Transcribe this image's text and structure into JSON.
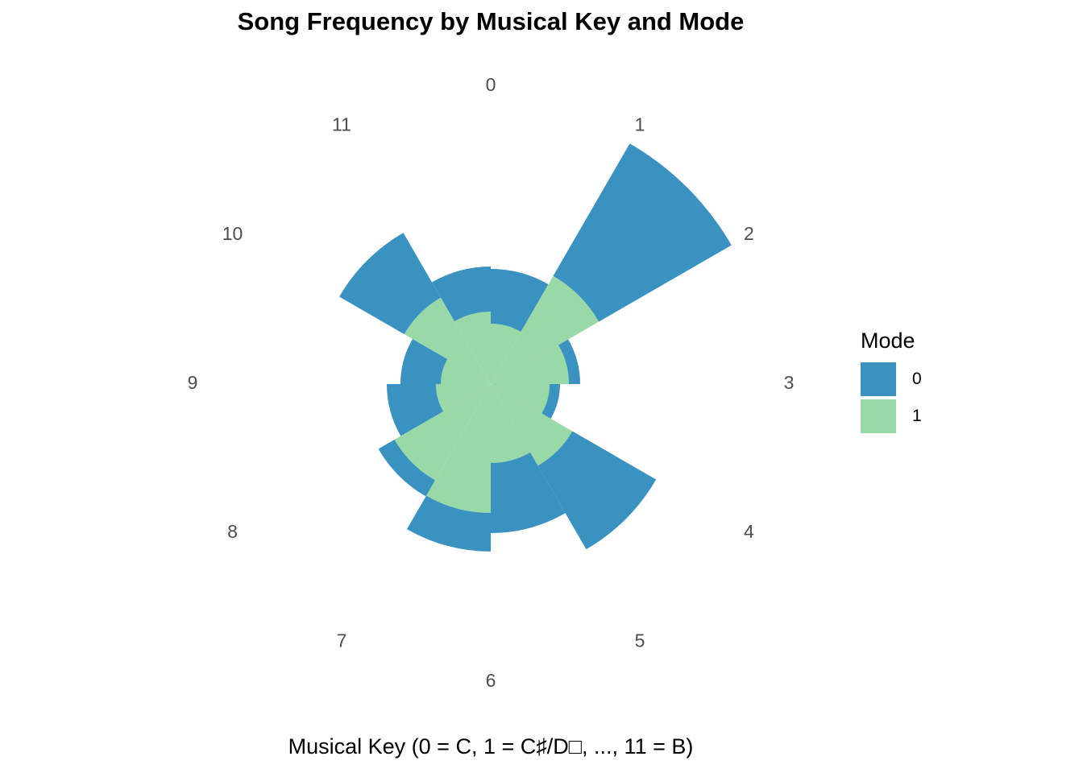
{
  "chart_data": {
    "type": "bar",
    "coord": "polar",
    "stacked": true,
    "title": "Song Frequency by Musical Key and Mode",
    "xlabel": "Musical Key (0 = C, 1 = C♯/D□, ..., 11 = B)",
    "ylabel": "",
    "categories": [
      "0",
      "1",
      "2",
      "3",
      "4",
      "5",
      "6",
      "7",
      "8",
      "9",
      "10",
      "11"
    ],
    "series": [
      {
        "name": "1",
        "color": "#99d8a7",
        "values": [
          75,
          155,
          97,
          73,
          117,
          98,
          160,
          138,
          68,
          62,
          124,
          90
        ]
      },
      {
        "name": "0",
        "color": "#3a92c1",
        "values": [
          68,
          190,
          14,
          13,
          120,
          87,
          48,
          23,
          61,
          50,
          93,
          56
        ]
      }
    ],
    "legend": {
      "title": "Mode",
      "position": "right",
      "items": [
        "0",
        "1"
      ]
    },
    "grid": false
  }
}
